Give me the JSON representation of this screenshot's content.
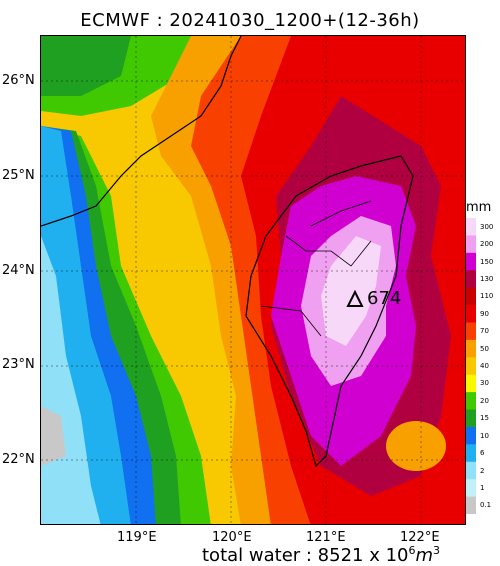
{
  "title": "ECMWF  : 20241030_1200+(12-36h)",
  "lat_labels": [
    "26°N",
    "25°N",
    "24°N",
    "23°N",
    "22°N"
  ],
  "lon_labels": [
    "119°E",
    "120°E",
    "121°E",
    "122°E"
  ],
  "footer": {
    "prefix": "total water : 8521 x 10",
    "exp": "6",
    "unit": "m",
    "unit_exp": "3"
  },
  "colorbar": {
    "unit": "mm",
    "levels": [
      "300",
      "200",
      "150",
      "130",
      "110",
      "90",
      "70",
      "50",
      "40",
      "30",
      "20",
      "15",
      "10",
      "6",
      "2",
      "1",
      "0.1"
    ],
    "colors": [
      "#f8d8f8",
      "#f0a0f0",
      "#d000d0",
      "#b00040",
      "#c80000",
      "#e80000",
      "#f84000",
      "#f8a000",
      "#f8c800",
      "#f8f800",
      "#40c800",
      "#20a020",
      "#1070f0",
      "#20b0f0",
      "#90e0f8",
      "#c0f0f8",
      "#c8c8c8"
    ]
  },
  "peak": {
    "value": "674",
    "marker": "triangle-marker"
  }
}
